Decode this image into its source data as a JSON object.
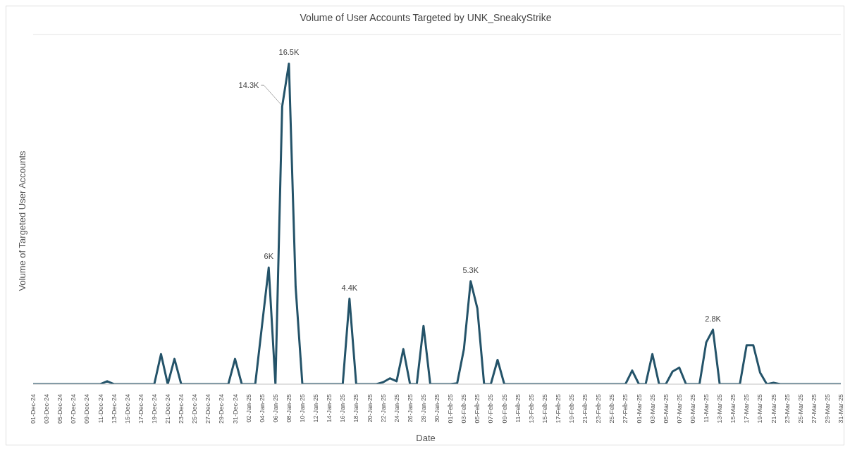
{
  "chart_data": {
    "type": "line",
    "title": "Volume of User Accounts Targeted by UNK_SneakyStrike",
    "xlabel": "Date",
    "ylabel": "Volume of Targeted User Accounts",
    "categories": [
      "01-Dec-24",
      null,
      "03-Dec-24",
      null,
      "05-Dec-24",
      null,
      "07-Dec-24",
      null,
      "09-Dec-24",
      null,
      "11-Dec-24",
      null,
      "13-Dec-24",
      null,
      "15-Dec-24",
      null,
      "17-Dec-24",
      null,
      "19-Dec-24",
      null,
      "21-Dec-24",
      null,
      "23-Dec-24",
      null,
      "25-Dec-24",
      null,
      "27-Dec-24",
      null,
      "29-Dec-24",
      null,
      "31-Dec-24",
      null,
      "02-Jan-25",
      null,
      "04-Jan-25",
      null,
      "06-Jan-25",
      null,
      "08-Jan-25",
      null,
      "10-Jan-25",
      null,
      "12-Jan-25",
      null,
      "14-Jan-25",
      null,
      "16-Jan-25",
      null,
      "18-Jan-25",
      null,
      "20-Jan-25",
      null,
      "22-Jan-25",
      null,
      "24-Jan-25",
      null,
      "26-Jan-25",
      null,
      "28-Jan-25",
      null,
      "30-Jan-25",
      null,
      "01-Feb-25",
      null,
      "03-Feb-25",
      null,
      "05-Feb-25",
      null,
      "07-Feb-25",
      null,
      "09-Feb-25",
      null,
      "11-Feb-25",
      null,
      "13-Feb-25",
      null,
      "15-Feb-25",
      null,
      "17-Feb-25",
      null,
      "19-Feb-25",
      null,
      "21-Feb-25",
      null,
      "23-Feb-25",
      null,
      "25-Feb-25",
      null,
      "27-Feb-25",
      null,
      "01-Mar-25",
      null,
      "03-Mar-25",
      null,
      "05-Mar-25",
      null,
      "07-Mar-25",
      null,
      "09-Mar-25",
      null,
      "11-Mar-25",
      null,
      "13-Mar-25",
      null,
      "15-Mar-25",
      null,
      "17-Mar-25",
      null,
      "19-Mar-25",
      null,
      "21-Mar-25",
      null,
      "23-Mar-25",
      null,
      "25-Mar-25",
      null,
      "27-Mar-25",
      null,
      "29-Mar-25",
      null,
      "31-Mar-25"
    ],
    "series": [
      {
        "color": "#245369",
        "values": [
          0,
          0,
          0,
          0,
          0,
          0,
          0,
          0,
          0,
          0,
          0,
          150,
          0,
          0,
          0,
          0,
          0,
          0,
          0,
          1550,
          0,
          1300,
          0,
          0,
          0,
          0,
          0,
          0,
          0,
          0,
          1300,
          0,
          0,
          0,
          3000,
          6000,
          0,
          14300,
          16500,
          5000,
          0,
          0,
          0,
          0,
          0,
          0,
          0,
          4400,
          0,
          0,
          0,
          0,
          100,
          300,
          150,
          1800,
          0,
          0,
          3000,
          0,
          0,
          0,
          0,
          50,
          1800,
          5300,
          3900,
          0,
          0,
          1250,
          0,
          0,
          0,
          0,
          0,
          0,
          0,
          0,
          0,
          0,
          0,
          0,
          0,
          0,
          0,
          0,
          0,
          0,
          0,
          700,
          0,
          0,
          1550,
          0,
          0,
          650,
          850,
          0,
          0,
          0,
          2150,
          2800,
          0,
          0,
          0,
          0,
          2000,
          2000,
          600,
          0,
          70,
          0,
          0,
          0,
          0,
          0,
          0,
          0,
          0,
          0,
          0
        ],
        "value_labels": [
          null,
          null,
          null,
          null,
          null,
          null,
          null,
          null,
          null,
          null,
          null,
          null,
          null,
          null,
          null,
          null,
          null,
          null,
          null,
          null,
          null,
          null,
          null,
          null,
          null,
          null,
          null,
          null,
          null,
          null,
          null,
          null,
          null,
          null,
          null,
          "6K",
          null,
          "14.3K",
          "16.5K",
          null,
          null,
          null,
          null,
          null,
          null,
          null,
          null,
          "4.4K",
          null,
          null,
          null,
          null,
          null,
          null,
          null,
          null,
          null,
          null,
          null,
          null,
          null,
          null,
          null,
          null,
          null,
          "5.3K",
          null,
          null,
          null,
          null,
          null,
          null,
          null,
          null,
          null,
          null,
          null,
          null,
          null,
          null,
          null,
          null,
          null,
          null,
          null,
          null,
          null,
          null,
          null,
          null,
          null,
          null,
          null,
          null,
          null,
          null,
          null,
          null,
          null,
          null,
          null,
          "2.8K",
          null,
          null,
          null,
          null,
          null,
          null,
          null,
          null,
          null,
          null,
          null,
          null,
          null,
          null,
          null,
          null,
          null,
          null,
          null
        ]
      }
    ],
    "ylim": [
      0,
      18000
    ],
    "tick_labels": "x",
    "grid": "y",
    "marker": "none",
    "line_style": "solid"
  }
}
